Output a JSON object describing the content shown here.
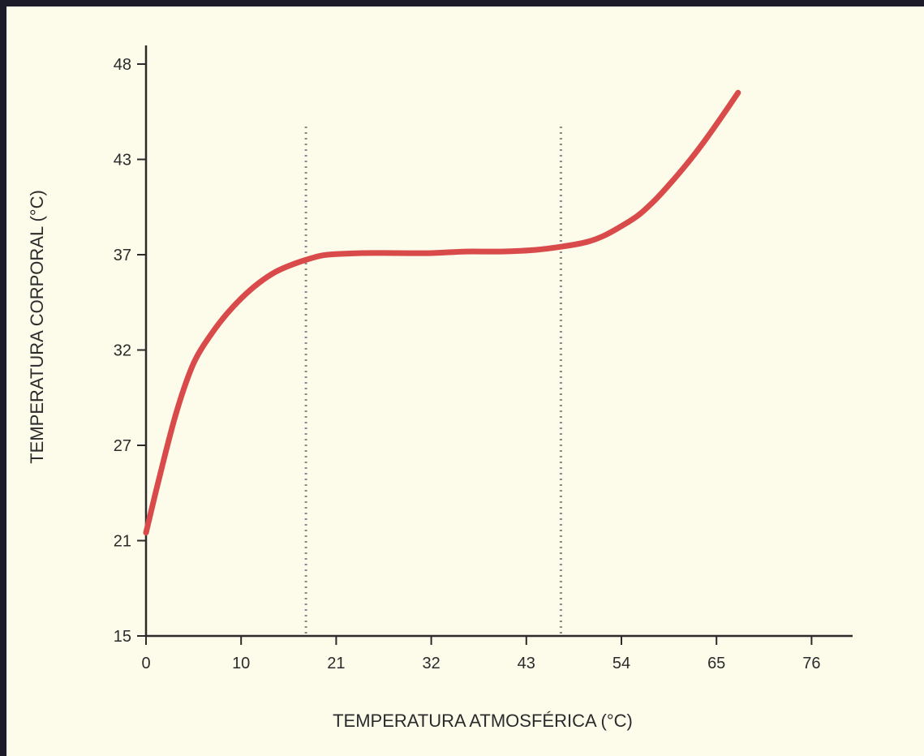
{
  "chart_data": {
    "type": "line",
    "title": "",
    "xlabel": "TEMPERATURA ATMOSFÉRICA (°C)",
    "ylabel": "TEMPERATURA CORPORAL (°C)",
    "x_ticks": [
      0,
      10,
      21,
      32,
      43,
      54,
      65,
      76
    ],
    "y_ticks": [
      15,
      21,
      27,
      32,
      37,
      43,
      48
    ],
    "xlim": [
      0,
      80
    ],
    "ylim": [
      15,
      49
    ],
    "grid": false,
    "legend": "none",
    "reference_lines_x": [
      17.5,
      47
    ],
    "series": [
      {
        "color": "#d94a4a",
        "x": [
          0,
          1,
          2,
          3,
          4,
          5,
          6,
          8,
          10,
          12,
          14,
          16,
          18,
          20,
          24,
          28,
          32,
          36,
          40,
          44,
          47,
          50,
          52,
          54,
          56,
          58,
          60,
          62,
          64,
          66,
          67.5
        ],
        "y": [
          21.5,
          24.0,
          26.4,
          28.4,
          30.0,
          31.3,
          32.2,
          33.6,
          34.7,
          35.5,
          36.1,
          36.5,
          36.8,
          37.0,
          37.1,
          37.1,
          37.1,
          37.2,
          37.2,
          37.3,
          37.5,
          37.8,
          38.2,
          38.8,
          39.5,
          40.5,
          41.7,
          43.0,
          44.2,
          45.5,
          46.5
        ]
      }
    ]
  },
  "colors": {
    "frame_background": "#1d1a2a",
    "plot_background": "#fdfbea",
    "axis": "#2b2b2b",
    "reference_line": "#8a8a8a"
  }
}
